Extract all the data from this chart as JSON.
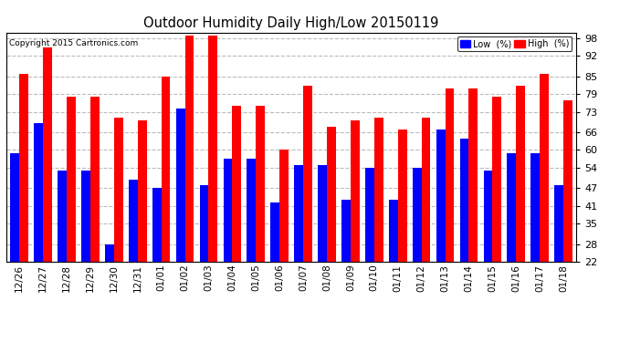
{
  "title": "Outdoor Humidity Daily High/Low 20150119",
  "copyright": "Copyright 2015 Cartronics.com",
  "categories": [
    "12/26",
    "12/27",
    "12/28",
    "12/29",
    "12/30",
    "12/31",
    "01/01",
    "01/02",
    "01/03",
    "01/04",
    "01/05",
    "01/06",
    "01/07",
    "01/08",
    "01/09",
    "01/10",
    "01/11",
    "01/12",
    "01/13",
    "01/14",
    "01/15",
    "01/16",
    "01/17",
    "01/18"
  ],
  "high": [
    86,
    95,
    78,
    78,
    71,
    70,
    85,
    99,
    99,
    75,
    75,
    60,
    82,
    68,
    70,
    71,
    67,
    71,
    81,
    81,
    78,
    82,
    86,
    77
  ],
  "low": [
    59,
    69,
    53,
    53,
    28,
    50,
    47,
    74,
    48,
    57,
    57,
    42,
    55,
    55,
    43,
    54,
    43,
    54,
    67,
    64,
    53,
    59,
    59,
    48
  ],
  "bar_color_low": "#0000ff",
  "bar_color_high": "#ff0000",
  "ylim_min": 22,
  "ylim_max": 100,
  "yticks": [
    22,
    28,
    35,
    41,
    47,
    54,
    60,
    66,
    73,
    79,
    85,
    92,
    98
  ],
  "grid_color": "#bbbbbb",
  "background_color": "#ffffff",
  "legend_low_label": "Low  (%)",
  "legend_high_label": "High  (%)",
  "border_color": "#000000"
}
